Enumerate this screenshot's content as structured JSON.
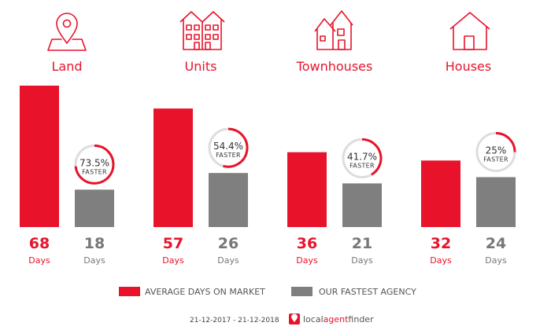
{
  "chart_data": {
    "type": "bar",
    "categories": [
      "Land",
      "Units",
      "Townhouses",
      "Houses"
    ],
    "series": [
      {
        "name": "AVERAGE DAYS ON MARKET",
        "values": [
          68,
          57,
          36,
          32
        ],
        "color": "#e8132b"
      },
      {
        "name": "OUR FASTEST AGENCY",
        "values": [
          18,
          26,
          21,
          24
        ],
        "color": "#7f7f7f"
      }
    ],
    "value_unit": "Days",
    "faster_percent": [
      "73.5%",
      "54.4%",
      "41.7%",
      "25%"
    ],
    "faster_fraction": [
      0.735,
      0.544,
      0.417,
      0.25
    ],
    "faster_label": "FASTER",
    "category_icons": [
      "map-pin-icon",
      "units-building-icon",
      "townhouses-icon",
      "house-icon"
    ],
    "ylim": [
      0,
      68
    ]
  },
  "footer": {
    "date_range": "21-12-2017 - 21-12-2018",
    "brand_part1": "local",
    "brand_part2": "agent",
    "brand_part3": "finder"
  }
}
